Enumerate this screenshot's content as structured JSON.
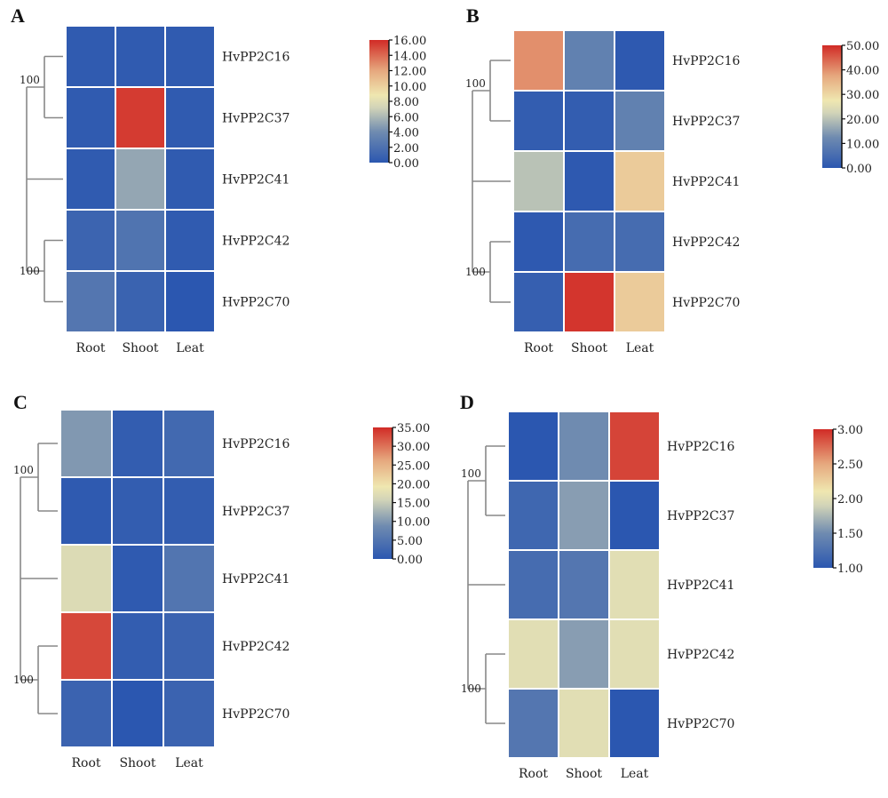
{
  "chart_data": [
    {
      "type": "heatmap",
      "panel": "A",
      "rows": [
        "HvPP2C16",
        "HvPP2C37",
        "HvPP2C41",
        "HvPP2C42",
        "HvPP2C70"
      ],
      "columns": [
        "Root",
        "Shoot",
        "Leat"
      ],
      "values": [
        [
          0.3,
          0.3,
          0.3
        ],
        [
          0.3,
          15.5,
          0.3
        ],
        [
          0.3,
          5.2,
          0.3
        ],
        [
          1.0,
          2.2,
          0.3
        ],
        [
          2.4,
          0.9,
          0.0
        ]
      ],
      "colorbar": {
        "min": 0,
        "max": 16,
        "ticks": [
          "16.00",
          "14.00",
          "12.00",
          "10.00",
          "8.00",
          "6.00",
          "4.00",
          "2.00",
          "0.00"
        ]
      },
      "bootstrap": [
        "100",
        "100"
      ]
    },
    {
      "type": "heatmap",
      "panel": "B",
      "rows": [
        "HvPP2C16",
        "HvPP2C37",
        "HvPP2C41",
        "HvPP2C42",
        "HvPP2C70"
      ],
      "columns": [
        "Root",
        "Shoot",
        "Leat"
      ],
      "values": [
        [
          40,
          10,
          0.5
        ],
        [
          1.5,
          1.5,
          10
        ],
        [
          20,
          0.5,
          32
        ],
        [
          0.5,
          5,
          5
        ],
        [
          2,
          49,
          32
        ]
      ],
      "colorbar": {
        "min": 0,
        "max": 50,
        "ticks": [
          "50.00",
          "40.00",
          "30.00",
          "20.00",
          "10.00",
          "0.00"
        ]
      },
      "bootstrap": [
        "100",
        "100"
      ]
    },
    {
      "type": "heatmap",
      "panel": "C",
      "rows": [
        "HvPP2C16",
        "HvPP2C37",
        "HvPP2C41",
        "HvPP2C42",
        "HvPP2C70"
      ],
      "columns": [
        "Root",
        "Shoot",
        "Leat"
      ],
      "values": [
        [
          10,
          1,
          3
        ],
        [
          0.5,
          1,
          1
        ],
        [
          17,
          0.5,
          5
        ],
        [
          33,
          1,
          2
        ],
        [
          2,
          0,
          2
        ]
      ],
      "colorbar": {
        "min": 0,
        "max": 35,
        "ticks": [
          "35.00",
          "30.00",
          "25.00",
          "20.00",
          "15.00",
          "10.00",
          "5.00",
          "0.00"
        ]
      },
      "bootstrap": [
        "100",
        "100"
      ]
    },
    {
      "type": "heatmap",
      "panel": "D",
      "rows": [
        "HvPP2C16",
        "HvPP2C37",
        "HvPP2C41",
        "HvPP2C42",
        "HvPP2C70"
      ],
      "columns": [
        "Root",
        "Shoot",
        "Leat"
      ],
      "values": [
        [
          1.0,
          1.5,
          2.9
        ],
        [
          1.15,
          1.6,
          1.0
        ],
        [
          1.2,
          1.3,
          2.0
        ],
        [
          2.0,
          1.6,
          2.0
        ],
        [
          1.3,
          2.0,
          1.0
        ]
      ],
      "colorbar": {
        "min": 1,
        "max": 3,
        "ticks": [
          "3.00",
          "2.50",
          "2.00",
          "1.50",
          "1.00"
        ]
      },
      "bootstrap": [
        "100",
        "100"
      ]
    }
  ]
}
